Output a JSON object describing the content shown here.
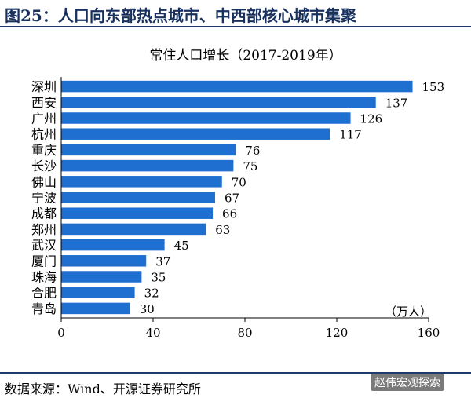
{
  "figure": {
    "title": "图25：人口向东部热点城市、中西部核心城市集聚",
    "source": "数据来源：Wind、开源证券研究所",
    "watermark": "赵伟宏观探索"
  },
  "colors": {
    "bar": "#1f6fd0",
    "axis": "#000000",
    "header": "#17305e"
  },
  "chart_data": {
    "type": "bar",
    "orientation": "horizontal",
    "title": "常住人口增长（2017-2019年）",
    "unit_label": "（万人）",
    "categories": [
      "深圳",
      "西安",
      "广州",
      "杭州",
      "重庆",
      "长沙",
      "佛山",
      "宁波",
      "成都",
      "郑州",
      "武汉",
      "厦门",
      "珠海",
      "合肥",
      "青岛"
    ],
    "values": [
      153,
      137,
      126,
      117,
      76,
      75,
      70,
      67,
      66,
      63,
      45,
      37,
      35,
      32,
      30
    ],
    "xlim": [
      0,
      160
    ],
    "xticks": [
      0,
      40,
      80,
      120,
      160
    ],
    "grid": false,
    "legend": "none",
    "data_labels": true
  }
}
